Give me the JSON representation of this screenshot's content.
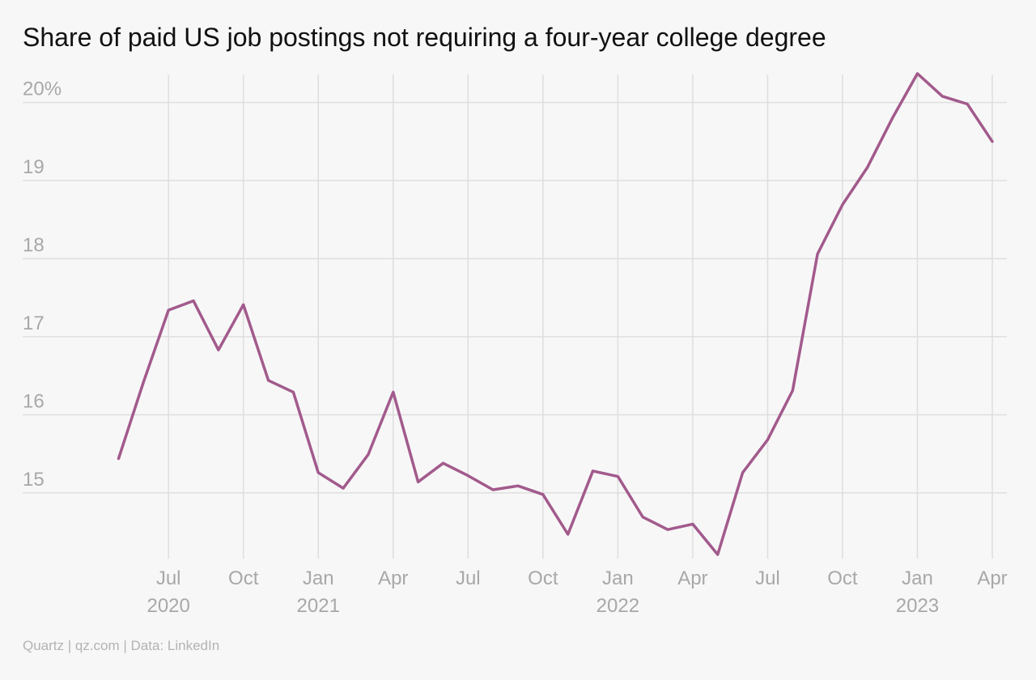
{
  "chart_data": {
    "type": "line",
    "title": "Share of paid US job postings not requiring a four-year college degree",
    "y_ticks": [
      {
        "value": 15,
        "label": "15"
      },
      {
        "value": 16,
        "label": "16"
      },
      {
        "value": 17,
        "label": "17"
      },
      {
        "value": 18,
        "label": "18"
      },
      {
        "value": 19,
        "label": "19"
      },
      {
        "value": 20,
        "label": "20%"
      }
    ],
    "ylim": [
      14.2,
      20.4
    ],
    "x_ticks": [
      {
        "date": "2020-07",
        "label": "Jul",
        "year": "2020"
      },
      {
        "date": "2020-10",
        "label": "Oct",
        "year": ""
      },
      {
        "date": "2021-01",
        "label": "Jan",
        "year": "2021"
      },
      {
        "date": "2021-04",
        "label": "Apr",
        "year": ""
      },
      {
        "date": "2021-07",
        "label": "Jul",
        "year": ""
      },
      {
        "date": "2021-10",
        "label": "Oct",
        "year": ""
      },
      {
        "date": "2022-01",
        "label": "Jan",
        "year": "2022"
      },
      {
        "date": "2022-04",
        "label": "Apr",
        "year": ""
      },
      {
        "date": "2022-07",
        "label": "Jul",
        "year": ""
      },
      {
        "date": "2022-10",
        "label": "Oct",
        "year": ""
      },
      {
        "date": "2023-01",
        "label": "Jan",
        "year": "2023"
      },
      {
        "date": "2023-04",
        "label": "Apr",
        "year": ""
      }
    ],
    "xlim": [
      "2020-05",
      "2023-04"
    ],
    "grid": true,
    "series": [
      {
        "color": "#a25a8c",
        "points": [
          {
            "x": "2020-05",
            "y": 15.44
          },
          {
            "x": "2020-06",
            "y": 16.42
          },
          {
            "x": "2020-07",
            "y": 17.34
          },
          {
            "x": "2020-08",
            "y": 17.46
          },
          {
            "x": "2020-09",
            "y": 16.83
          },
          {
            "x": "2020-10",
            "y": 17.41
          },
          {
            "x": "2020-11",
            "y": 16.44
          },
          {
            "x": "2020-12",
            "y": 16.29
          },
          {
            "x": "2021-01",
            "y": 15.26
          },
          {
            "x": "2021-02",
            "y": 15.06
          },
          {
            "x": "2021-03",
            "y": 15.49
          },
          {
            "x": "2021-04",
            "y": 16.29
          },
          {
            "x": "2021-05",
            "y": 15.14
          },
          {
            "x": "2021-06",
            "y": 15.38
          },
          {
            "x": "2021-07",
            "y": 15.22
          },
          {
            "x": "2021-08",
            "y": 15.04
          },
          {
            "x": "2021-09",
            "y": 15.09
          },
          {
            "x": "2021-10",
            "y": 14.98
          },
          {
            "x": "2021-11",
            "y": 14.47
          },
          {
            "x": "2021-12",
            "y": 15.28
          },
          {
            "x": "2022-01",
            "y": 15.21
          },
          {
            "x": "2022-02",
            "y": 14.69
          },
          {
            "x": "2022-03",
            "y": 14.53
          },
          {
            "x": "2022-04",
            "y": 14.6
          },
          {
            "x": "2022-05",
            "y": 14.21
          },
          {
            "x": "2022-06",
            "y": 15.26
          },
          {
            "x": "2022-07",
            "y": 15.68
          },
          {
            "x": "2022-08",
            "y": 16.31
          },
          {
            "x": "2022-09",
            "y": 18.06
          },
          {
            "x": "2022-10",
            "y": 18.69
          },
          {
            "x": "2022-11",
            "y": 19.17
          },
          {
            "x": "2022-12",
            "y": 19.8
          },
          {
            "x": "2023-01",
            "y": 20.37
          },
          {
            "x": "2023-02",
            "y": 20.08
          },
          {
            "x": "2023-03",
            "y": 19.98
          },
          {
            "x": "2023-04",
            "y": 19.5
          }
        ]
      }
    ]
  },
  "source": "Quartz | qz.com | Data: LinkedIn"
}
